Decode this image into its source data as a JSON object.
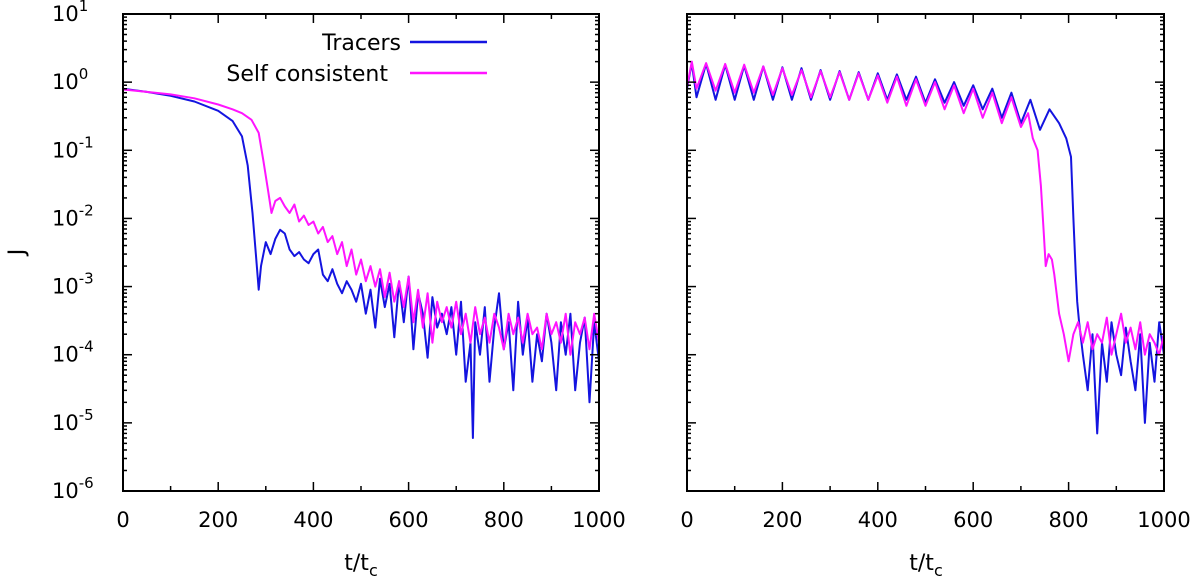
{
  "chart_data": [
    {
      "type": "line",
      "panel": "left",
      "title": "",
      "xlabel": "t/t",
      "xlabel_sub": "c",
      "ylabel": "J",
      "xlim": [
        0,
        1000
      ],
      "ylim": [
        1e-06,
        10
      ],
      "yscale": "log",
      "x_ticks": [
        "0",
        "200",
        "400",
        "600",
        "800",
        "1000"
      ],
      "y_ticks": [
        {
          "base": "10",
          "exp": "1"
        },
        {
          "base": "10",
          "exp": "0"
        },
        {
          "base": "10",
          "exp": "-1"
        },
        {
          "base": "10",
          "exp": "-2"
        },
        {
          "base": "10",
          "exp": "-3"
        },
        {
          "base": "10",
          "exp": "-4"
        },
        {
          "base": "10",
          "exp": "-5"
        },
        {
          "base": "10",
          "exp": "-6"
        }
      ],
      "legend": {
        "position": "top-right",
        "entries": [
          "Tracers",
          "Self consistent"
        ]
      },
      "series": [
        {
          "name": "Tracers",
          "color": "#1414e0",
          "x": [
            0,
            50,
            100,
            150,
            200,
            230,
            250,
            262,
            272,
            280,
            285,
            290,
            300,
            310,
            320,
            330,
            340,
            350,
            360,
            370,
            380,
            390,
            400,
            410,
            420,
            430,
            440,
            450,
            460,
            470,
            480,
            490,
            500,
            510,
            520,
            530,
            540,
            550,
            560,
            570,
            580,
            590,
            600,
            610,
            620,
            630,
            640,
            650,
            660,
            670,
            680,
            690,
            700,
            710,
            720,
            730,
            735,
            740,
            750,
            760,
            770,
            780,
            790,
            800,
            810,
            820,
            830,
            840,
            850,
            860,
            870,
            880,
            890,
            900,
            910,
            920,
            930,
            940,
            950,
            960,
            970,
            980,
            990,
            1000
          ],
          "values": [
            0.8,
            0.72,
            0.63,
            0.52,
            0.38,
            0.27,
            0.16,
            0.06,
            0.012,
            0.0025,
            0.0009,
            0.002,
            0.0045,
            0.003,
            0.005,
            0.0068,
            0.006,
            0.0035,
            0.0028,
            0.0032,
            0.0025,
            0.0022,
            0.003,
            0.0035,
            0.0015,
            0.0012,
            0.0018,
            0.0011,
            0.0008,
            0.0012,
            0.0009,
            0.0006,
            0.0011,
            0.0004,
            0.0009,
            0.00025,
            0.0013,
            0.0005,
            0.0011,
            0.00018,
            0.0012,
            0.0003,
            0.0014,
            0.00012,
            0.0008,
            0.0004,
            9e-05,
            0.0007,
            0.00025,
            0.0004,
            0.0002,
            0.0005,
            0.0001,
            0.0006,
            4e-05,
            0.00015,
            6e-06,
            0.0003,
            0.0001,
            0.0005,
            4e-05,
            0.00025,
            0.0008,
            0.00012,
            0.0003,
            3e-05,
            0.0006,
            0.0001,
            0.00035,
            4e-05,
            0.0002,
            8e-05,
            0.0004,
            0.00015,
            3e-05,
            0.0003,
            0.0001,
            0.0004,
            3e-05,
            0.00015,
            0.00035,
            2e-05,
            0.0003,
            8e-05
          ]
        },
        {
          "name": "Self consistent",
          "color": "#ff14ff",
          "x": [
            0,
            50,
            100,
            150,
            200,
            230,
            250,
            270,
            285,
            295,
            305,
            312,
            320,
            330,
            340,
            350,
            360,
            370,
            380,
            390,
            400,
            410,
            420,
            430,
            440,
            450,
            460,
            470,
            480,
            490,
            500,
            510,
            520,
            530,
            540,
            550,
            560,
            570,
            580,
            590,
            600,
            610,
            620,
            630,
            640,
            650,
            660,
            670,
            680,
            690,
            700,
            710,
            720,
            730,
            740,
            750,
            760,
            770,
            780,
            790,
            800,
            810,
            820,
            830,
            840,
            850,
            860,
            870,
            880,
            890,
            900,
            910,
            920,
            930,
            940,
            950,
            960,
            970,
            980,
            990,
            1000
          ],
          "values": [
            0.78,
            0.72,
            0.66,
            0.58,
            0.47,
            0.4,
            0.35,
            0.28,
            0.18,
            0.07,
            0.025,
            0.012,
            0.018,
            0.02,
            0.015,
            0.012,
            0.016,
            0.009,
            0.011,
            0.008,
            0.009,
            0.006,
            0.0075,
            0.0045,
            0.0055,
            0.003,
            0.0045,
            0.002,
            0.0035,
            0.0015,
            0.0025,
            0.0012,
            0.002,
            0.001,
            0.0018,
            0.0007,
            0.0016,
            0.0006,
            0.0012,
            0.0005,
            0.0014,
            0.0003,
            0.0009,
            0.00025,
            0.0008,
            0.00015,
            0.0006,
            0.0003,
            0.0005,
            0.00025,
            0.0006,
            0.0002,
            0.0004,
            0.00015,
            0.0005,
            0.0002,
            0.00035,
            0.00015,
            0.0004,
            0.00025,
            0.00012,
            0.0004,
            0.0002,
            0.00035,
            0.00015,
            0.0004,
            0.0002,
            0.00025,
            0.00012,
            0.0004,
            0.0002,
            0.0003,
            0.00015,
            0.0004,
            0.0001,
            0.0003,
            0.0002,
            0.00035,
            0.00012,
            0.0004,
            0.00015
          ]
        }
      ]
    },
    {
      "type": "line",
      "panel": "right",
      "title": "",
      "xlabel": "t/t",
      "xlabel_sub": "c",
      "ylabel": "",
      "xlim": [
        0,
        1000
      ],
      "ylim": [
        1e-06,
        10
      ],
      "yscale": "log",
      "x_ticks": [
        "0",
        "200",
        "400",
        "600",
        "800",
        "1000"
      ],
      "y_ticks": [],
      "legend": null,
      "series": [
        {
          "name": "Tracers",
          "color": "#1414e0",
          "x": [
            0,
            10,
            20,
            40,
            60,
            80,
            100,
            120,
            140,
            160,
            180,
            200,
            220,
            240,
            260,
            280,
            300,
            320,
            340,
            360,
            380,
            400,
            420,
            440,
            460,
            480,
            500,
            520,
            540,
            560,
            580,
            600,
            620,
            640,
            660,
            680,
            700,
            720,
            740,
            760,
            780,
            795,
            805,
            810,
            815,
            818,
            822,
            830,
            840,
            850,
            860,
            870,
            880,
            890,
            900,
            910,
            920,
            930,
            940,
            950,
            960,
            970,
            980,
            990,
            1000
          ],
          "values": [
            0.8,
            1.9,
            0.6,
            1.85,
            0.55,
            1.8,
            0.55,
            1.75,
            0.55,
            1.7,
            0.55,
            1.65,
            0.55,
            1.6,
            0.55,
            1.5,
            0.55,
            1.45,
            0.55,
            1.4,
            0.55,
            1.35,
            0.55,
            1.3,
            0.55,
            1.2,
            0.5,
            1.1,
            0.5,
            1.0,
            0.45,
            0.9,
            0.4,
            0.8,
            0.3,
            0.7,
            0.25,
            0.55,
            0.2,
            0.4,
            0.25,
            0.15,
            0.08,
            0.01,
            0.0015,
            0.0006,
            0.0003,
            0.0001,
            3e-05,
            0.0002,
            7e-06,
            0.00015,
            4e-05,
            0.0003,
            0.0001,
            5e-05,
            0.00025,
            8e-05,
            3e-05,
            0.0002,
            1e-05,
            0.00015,
            4e-05,
            0.0003,
            0.0001
          ]
        },
        {
          "name": "Self consistent",
          "color": "#ff14ff",
          "x": [
            0,
            10,
            20,
            40,
            60,
            80,
            100,
            120,
            140,
            160,
            180,
            200,
            220,
            240,
            260,
            280,
            300,
            320,
            340,
            360,
            380,
            400,
            420,
            440,
            460,
            480,
            500,
            520,
            540,
            560,
            580,
            600,
            620,
            640,
            660,
            680,
            700,
            715,
            725,
            735,
            742,
            748,
            752,
            758,
            765,
            770,
            780,
            790,
            800,
            810,
            820,
            830,
            840,
            850,
            860,
            870,
            880,
            890,
            900,
            910,
            920,
            930,
            940,
            950,
            960,
            970,
            980,
            990,
            1000
          ],
          "values": [
            0.85,
            2.0,
            0.8,
            1.9,
            0.75,
            1.85,
            0.7,
            1.8,
            0.7,
            1.7,
            0.65,
            1.6,
            0.65,
            1.5,
            0.6,
            1.45,
            0.6,
            1.4,
            0.55,
            1.35,
            0.55,
            1.25,
            0.5,
            1.2,
            0.45,
            1.1,
            0.45,
            1.0,
            0.4,
            0.9,
            0.35,
            0.8,
            0.3,
            0.7,
            0.25,
            0.6,
            0.22,
            0.35,
            0.15,
            0.1,
            0.03,
            0.006,
            0.002,
            0.003,
            0.0025,
            0.0015,
            0.0004,
            0.0002,
            8e-05,
            0.0002,
            0.0003,
            0.00015,
            0.0003,
            0.00012,
            0.0002,
            0.00015,
            0.00035,
            0.0001,
            0.0002,
            0.0004,
            0.00015,
            0.00025,
            0.00012,
            0.0003,
            0.0001,
            0.0002,
            0.00015,
            0.0001,
            0.0002
          ]
        }
      ]
    }
  ]
}
